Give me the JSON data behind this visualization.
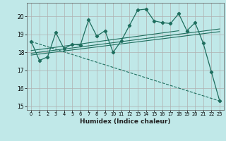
{
  "title": "",
  "xlabel": "Humidex (Indice chaleur)",
  "bg_color": "#c0e8e8",
  "grid_color": "#b0b0b0",
  "line_color": "#1e6e5e",
  "xlim": [
    -0.5,
    23.5
  ],
  "ylim": [
    14.8,
    20.75
  ],
  "yticks": [
    15,
    16,
    17,
    18,
    19,
    20
  ],
  "xticks": [
    0,
    1,
    2,
    3,
    4,
    5,
    6,
    7,
    8,
    9,
    10,
    11,
    12,
    13,
    14,
    15,
    16,
    17,
    18,
    19,
    20,
    21,
    22,
    23
  ],
  "main_data_x": [
    0,
    1,
    2,
    3,
    4,
    5,
    6,
    7,
    8,
    9,
    10,
    11,
    12,
    13,
    14,
    15,
    16,
    17,
    18,
    19,
    20,
    21,
    22,
    23
  ],
  "main_data_y": [
    18.6,
    17.55,
    17.75,
    19.1,
    18.2,
    18.45,
    18.4,
    19.8,
    18.9,
    19.2,
    18.0,
    18.65,
    19.5,
    20.35,
    20.4,
    19.75,
    19.65,
    19.6,
    20.15,
    19.2,
    19.65,
    18.5,
    16.9,
    15.3
  ],
  "reg_line1_x": [
    0,
    23
  ],
  "reg_line1_y": [
    17.85,
    19.15
  ],
  "reg_line2_x": [
    0,
    23
  ],
  "reg_line2_y": [
    17.95,
    19.3
  ],
  "reg_line3_x": [
    0,
    18
  ],
  "reg_line3_y": [
    18.1,
    19.2
  ],
  "dashed_line_x": [
    0,
    23
  ],
  "dashed_line_y": [
    18.6,
    15.3
  ]
}
